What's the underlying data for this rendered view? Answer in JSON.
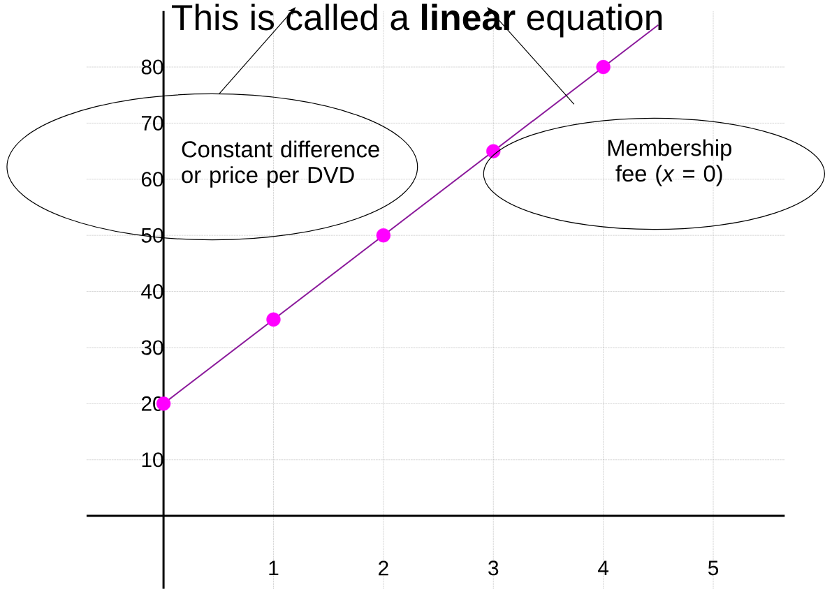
{
  "chart_data": {
    "type": "scatter",
    "title": "This is called a **linear** equation",
    "x": [
      0,
      1,
      2,
      3,
      4
    ],
    "xlim": [
      -0.7,
      5.65
    ],
    "ylim": [
      -13,
      90
    ],
    "xticks": [
      1,
      2,
      3,
      4,
      5
    ],
    "yticks": [
      10,
      20,
      30,
      40,
      50,
      60,
      70,
      80
    ],
    "grid": true,
    "annotations": [
      "Constant difference or price per DVD",
      "Membership fee (*x* = 0)"
    ],
    "series": [
      {
        "color": "#ff00ff",
        "values": [
          20,
          35,
          50,
          65,
          80
        ]
      },
      {
        "type": "line",
        "x": [
          0,
          4.5
        ],
        "color": "#8b1a9b",
        "values": [
          20,
          87.5
        ]
      }
    ]
  }
}
